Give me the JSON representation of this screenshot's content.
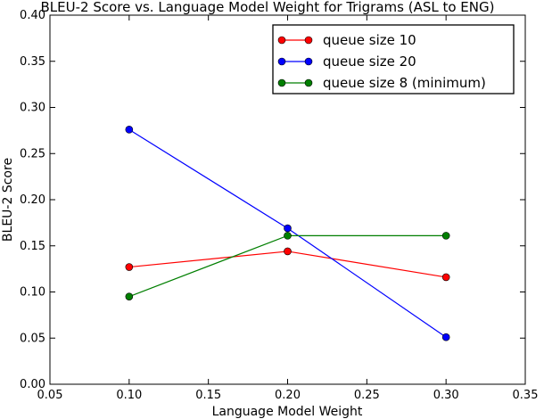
{
  "chart_data": {
    "type": "line",
    "title": "BLEU-2 Score vs. Language Model Weight for Trigrams (ASL to ENG)",
    "xlabel": "Language Model Weight",
    "ylabel": "BLEU-2 Score",
    "xlim": [
      0.05,
      0.35
    ],
    "ylim": [
      0.0,
      0.4
    ],
    "xticks": [
      "0.05",
      "0.10",
      "0.15",
      "0.20",
      "0.25",
      "0.30",
      "0.35"
    ],
    "yticks": [
      "0.00",
      "0.05",
      "0.10",
      "0.15",
      "0.20",
      "0.25",
      "0.30",
      "0.35",
      "0.40"
    ],
    "grid": false,
    "legend_position": "top-right",
    "x": [
      0.1,
      0.2,
      0.3
    ],
    "series": [
      {
        "name": "queue size 10",
        "color": "#ff0000",
        "values": [
          0.127,
          0.144,
          0.116
        ]
      },
      {
        "name": "queue size 20",
        "color": "#0000ff",
        "values": [
          0.276,
          0.169,
          0.051
        ]
      },
      {
        "name": "queue size 8 (minimum)",
        "color": "#007f00",
        "values": [
          0.095,
          0.161,
          0.161
        ]
      }
    ]
  }
}
